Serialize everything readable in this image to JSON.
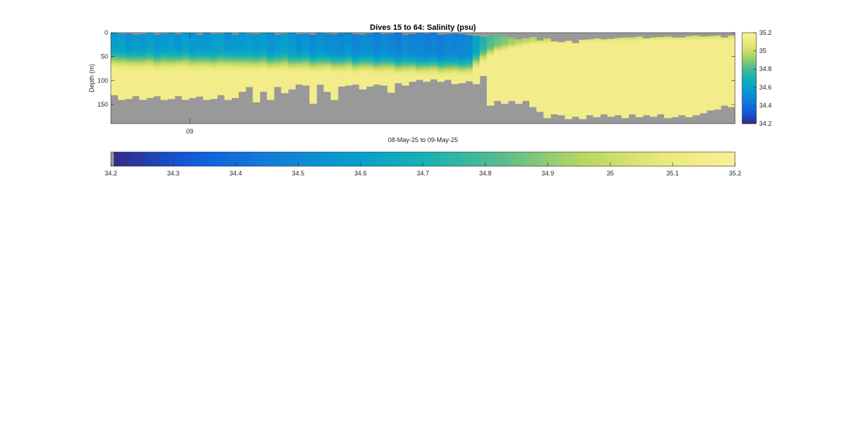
{
  "chart_data": {
    "type": "heatmap",
    "title": "Dives 15 to 64: Salinity (psu)",
    "xlabel": "08-May-25 to 09-May-25",
    "ylabel": "Depth (m)",
    "x_ticks": [
      "09"
    ],
    "y_ticks": [
      0,
      50,
      100,
      150
    ],
    "ylim": [
      0,
      190
    ],
    "ydir": "reverse",
    "colormap": "parula",
    "no_data_color": "#999999",
    "clim": [
      34.2,
      35.2
    ],
    "colorbar_right": {
      "ticks": [
        35.2,
        35,
        34.8,
        34.6,
        34.4,
        34.2
      ]
    },
    "colorbar_bottom": {
      "ticks": [
        34.2,
        34.3,
        34.4,
        34.5,
        34.6,
        34.7,
        34.8,
        34.9,
        35,
        35.1,
        35.2
      ]
    },
    "profiles": {
      "count": 88,
      "dive_first": 15,
      "dive_last": 64,
      "top_depth_m": [
        0,
        2,
        2,
        4,
        3,
        0,
        4,
        2,
        0,
        3,
        0,
        1,
        4,
        0,
        3,
        2,
        0,
        4,
        0,
        2,
        3,
        1,
        0,
        4,
        2,
        0,
        3,
        2,
        4,
        0,
        2,
        3,
        1,
        0,
        3,
        4,
        2,
        0,
        3,
        2,
        0,
        4,
        3,
        1,
        2,
        0,
        4,
        3,
        2,
        3,
        5,
        7,
        9,
        6,
        4,
        8,
        10,
        14,
        12,
        9,
        16,
        12,
        18,
        20,
        17,
        22,
        15,
        14,
        12,
        14,
        13,
        11,
        10,
        10,
        8,
        12,
        10,
        9,
        8,
        10,
        10,
        7,
        6,
        8,
        7,
        6,
        10,
        6
      ],
      "bottom_depth_m": [
        130,
        140,
        138,
        132,
        140,
        136,
        132,
        140,
        138,
        132,
        140,
        136,
        133,
        140,
        138,
        130,
        140,
        136,
        123,
        113,
        145,
        123,
        140,
        113,
        126,
        118,
        108,
        110,
        148,
        108,
        123,
        140,
        112,
        110,
        108,
        118,
        112,
        108,
        110,
        125,
        105,
        110,
        102,
        98,
        102,
        97,
        102,
        98,
        107,
        105,
        101,
        107,
        90,
        152,
        142,
        148,
        142,
        148,
        142,
        155,
        165,
        178,
        170,
        172,
        180,
        175,
        180,
        172,
        176,
        170,
        175,
        172,
        178,
        170,
        176,
        172,
        175,
        170,
        178,
        176,
        172,
        176,
        172,
        168,
        162,
        160,
        152,
        155
      ],
      "halocline_depth_m": [
        28,
        30,
        29,
        31,
        30,
        29,
        32,
        30,
        31,
        30,
        29,
        32,
        31,
        30,
        33,
        31,
        30,
        32,
        31,
        33,
        32,
        31,
        34,
        33,
        32,
        35,
        34,
        33,
        36,
        35,
        34,
        37,
        36,
        35,
        38,
        37,
        36,
        39,
        38,
        37,
        41,
        40,
        39,
        42,
        41,
        40,
        43,
        42,
        41,
        44,
        43,
        36,
        30,
        26,
        22,
        20,
        18,
        16,
        14,
        12,
        12,
        11,
        11,
        10,
        10,
        10,
        9,
        9,
        9,
        9,
        8,
        8,
        8,
        8,
        8,
        7,
        7,
        7,
        7,
        7,
        7,
        7,
        7,
        6,
        6,
        6,
        6,
        6
      ],
      "halocline_thickness_m": [
        52,
        52,
        53,
        52,
        52,
        53,
        52,
        53,
        53,
        52,
        53,
        52,
        53,
        53,
        52,
        53,
        53,
        52,
        53,
        52,
        53,
        53,
        52,
        53,
        52,
        53,
        52,
        53,
        52,
        53,
        52,
        53,
        53,
        52,
        53,
        52,
        53,
        52,
        53,
        53,
        52,
        53,
        52,
        53,
        52,
        53,
        52,
        53,
        53,
        52,
        52,
        44,
        36,
        28,
        22,
        20,
        18,
        17,
        16,
        15,
        15,
        14,
        14,
        14,
        13,
        13,
        13,
        13,
        12,
        12,
        12,
        12,
        12,
        12,
        12,
        12,
        11,
        11,
        11,
        11,
        11,
        11,
        11,
        11,
        11,
        11,
        11,
        11
      ],
      "surface_salinity_psu": [
        34.55,
        34.58,
        34.52,
        34.56,
        34.54,
        34.57,
        34.53,
        34.55,
        34.56,
        34.52,
        34.57,
        34.54,
        34.55,
        34.53,
        34.56,
        34.58,
        34.52,
        34.55,
        34.54,
        34.57,
        34.53,
        34.56,
        34.52,
        34.55,
        34.57,
        34.54,
        34.5,
        34.53,
        34.48,
        34.52,
        34.49,
        34.5,
        34.47,
        34.51,
        34.46,
        34.5,
        34.48,
        34.45,
        34.49,
        34.46,
        34.44,
        34.48,
        34.45,
        34.47,
        34.44,
        34.46,
        34.43,
        34.47,
        34.45,
        34.46,
        34.48,
        34.6,
        34.7,
        34.78,
        34.82,
        34.85,
        34.88,
        34.9,
        34.92,
        34.92,
        34.93,
        34.94,
        34.94,
        34.95,
        34.95,
        34.95,
        34.96,
        34.96,
        34.96,
        34.96,
        34.97,
        34.97,
        34.97,
        34.97,
        34.97,
        34.97,
        34.98,
        34.98,
        34.98,
        34.98,
        34.98,
        34.98,
        34.98,
        34.98,
        34.98,
        34.98,
        34.98,
        34.98
      ],
      "deep_salinity_psu": 35.15
    }
  }
}
